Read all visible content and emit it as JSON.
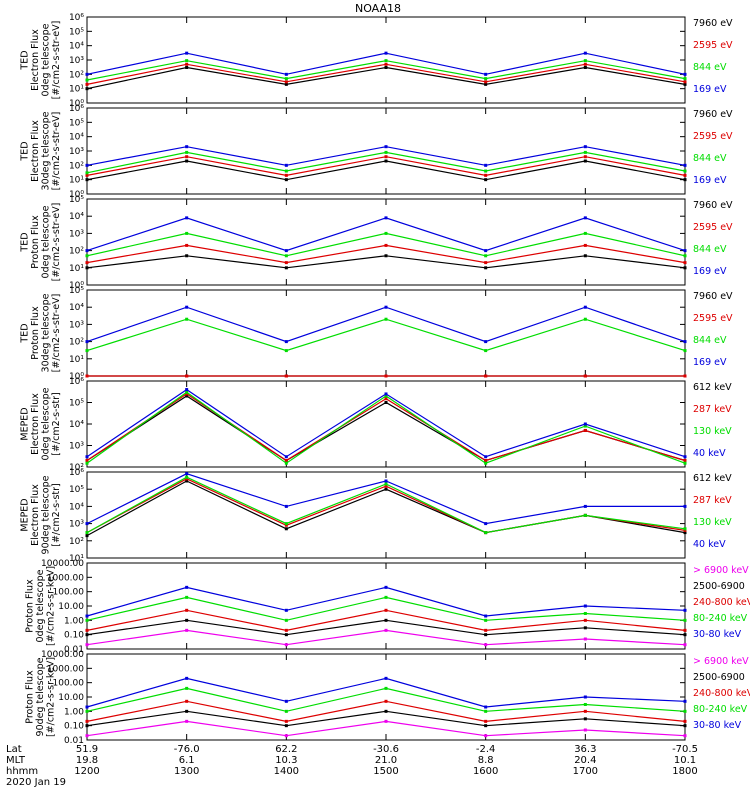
{
  "title": "NOAA18",
  "colors": {
    "black": "#000000",
    "red": "#dd0000",
    "green": "#00dd00",
    "blue": "#0000dd",
    "magenta": "#ee00ee"
  },
  "footer": {
    "row_labels": [
      "Lat",
      "MLT",
      "hhmm"
    ],
    "date": "2020 Jan 19",
    "columns": [
      {
        "lat": "51.9",
        "mlt": "19.8",
        "hhmm": "1200"
      },
      {
        "lat": "-76.0",
        "mlt": "6.1",
        "hhmm": "1300"
      },
      {
        "lat": "62.2",
        "mlt": "10.3",
        "hhmm": "1400"
      },
      {
        "lat": "-30.6",
        "mlt": "21.0",
        "hhmm": "1500"
      },
      {
        "lat": "-2.4",
        "mlt": "8.8",
        "hhmm": "1600"
      },
      {
        "lat": "36.3",
        "mlt": "20.4",
        "hhmm": "1700"
      },
      {
        "lat": "-70.5",
        "mlt": "10.1",
        "hhmm": "1800"
      }
    ]
  },
  "chart_data": [
    {
      "type": "line",
      "ylabel_lines": [
        "TED",
        "Electron Flux",
        "0deg telescope",
        "[#/cm2-s-str-eV]"
      ],
      "scale": "log",
      "ylim": [
        1,
        1000000
      ],
      "tick_labels": [
        "10⁰",
        "10¹",
        "10²",
        "10³",
        "10⁴",
        "10⁵",
        "10⁶"
      ],
      "legend": [
        {
          "label": "7960 eV",
          "color": "#000000"
        },
        {
          "label": "2595 eV",
          "color": "#dd0000"
        },
        {
          "label": "844 eV",
          "color": "#00dd00"
        },
        {
          "label": "169 eV",
          "color": "#0000dd"
        }
      ],
      "approximate": true,
      "x": [
        "1200",
        "1300",
        "1400",
        "1500",
        "1600",
        "1700",
        "1800"
      ],
      "series": [
        {
          "values": [
            10,
            300,
            20,
            300,
            20,
            300,
            20
          ]
        },
        {
          "values": [
            20,
            500,
            30,
            500,
            30,
            500,
            30
          ]
        },
        {
          "values": [
            40,
            900,
            50,
            900,
            50,
            900,
            50
          ]
        },
        {
          "values": [
            100,
            3000,
            100,
            3000,
            100,
            3000,
            100
          ]
        }
      ]
    },
    {
      "type": "line",
      "ylabel_lines": [
        "TED",
        "Electron Flux",
        "30deg telescope",
        "[#/cm2-s-str-eV]"
      ],
      "scale": "log",
      "ylim": [
        1,
        1000000
      ],
      "tick_labels": [
        "10⁰",
        "10¹",
        "10²",
        "10³",
        "10⁴",
        "10⁵",
        "10⁶"
      ],
      "legend": [
        {
          "label": "7960 eV",
          "color": "#000000"
        },
        {
          "label": "2595 eV",
          "color": "#dd0000"
        },
        {
          "label": "844 eV",
          "color": "#00dd00"
        },
        {
          "label": "169 eV",
          "color": "#0000dd"
        }
      ],
      "approximate": true,
      "x": [
        "1200",
        "1300",
        "1400",
        "1500",
        "1600",
        "1700",
        "1800"
      ],
      "series": [
        {
          "values": [
            10,
            200,
            10,
            200,
            10,
            200,
            10
          ]
        },
        {
          "values": [
            20,
            400,
            20,
            400,
            20,
            400,
            20
          ]
        },
        {
          "values": [
            30,
            800,
            40,
            800,
            40,
            800,
            40
          ]
        },
        {
          "values": [
            100,
            2000,
            100,
            2000,
            100,
            2000,
            100
          ]
        }
      ]
    },
    {
      "type": "line",
      "ylabel_lines": [
        "TED",
        "Proton Flux",
        "0deg telescope",
        "[#/cm2-s-str-eV]"
      ],
      "scale": "log",
      "ylim": [
        1,
        100000
      ],
      "tick_labels": [
        "10⁰",
        "10¹",
        "10²",
        "10³",
        "10⁴",
        "10⁵"
      ],
      "legend": [
        {
          "label": "7960 eV",
          "color": "#000000"
        },
        {
          "label": "2595 eV",
          "color": "#dd0000"
        },
        {
          "label": "844 eV",
          "color": "#00dd00"
        },
        {
          "label": "169 eV",
          "color": "#0000dd"
        }
      ],
      "approximate": true,
      "x": [
        "1200",
        "1300",
        "1400",
        "1500",
        "1600",
        "1700",
        "1800"
      ],
      "series": [
        {
          "values": [
            10,
            50,
            10,
            50,
            10,
            50,
            10
          ]
        },
        {
          "values": [
            20,
            200,
            20,
            200,
            20,
            200,
            20
          ]
        },
        {
          "values": [
            50,
            1000,
            50,
            1000,
            50,
            1000,
            50
          ]
        },
        {
          "values": [
            100,
            8000,
            100,
            8000,
            100,
            8000,
            100
          ]
        }
      ]
    },
    {
      "type": "line",
      "ylabel_lines": [
        "TED",
        "Proton Flux",
        "30deg telescope",
        "[#/cm2-s-str-eV]"
      ],
      "scale": "log",
      "ylim": [
        1,
        100000
      ],
      "tick_labels": [
        "10⁰",
        "10¹",
        "10²",
        "10³",
        "10⁴",
        "10⁵"
      ],
      "legend": [
        {
          "label": "7960 eV",
          "color": "#000000"
        },
        {
          "label": "2595 eV",
          "color": "#dd0000"
        },
        {
          "label": "844 eV",
          "color": "#00dd00"
        },
        {
          "label": "169 eV",
          "color": "#0000dd"
        }
      ],
      "approximate": true,
      "x": [
        "1200",
        "1300",
        "1400",
        "1500",
        "1600",
        "1700",
        "1800"
      ],
      "series": [
        {
          "values": [
            1,
            1,
            1,
            1,
            1,
            1,
            1
          ]
        },
        {
          "values": [
            1,
            1,
            1,
            1,
            1,
            1,
            1
          ]
        },
        {
          "values": [
            30,
            2000,
            30,
            2000,
            30,
            2000,
            30
          ]
        },
        {
          "values": [
            100,
            10000,
            100,
            10000,
            100,
            10000,
            100
          ]
        }
      ]
    },
    {
      "type": "line",
      "ylabel_lines": [
        "MEPED",
        "Electron Flux",
        "0deg telescope",
        "[#/cm2-s-str]"
      ],
      "scale": "log",
      "ylim": [
        100,
        1000000
      ],
      "tick_labels": [
        "10²",
        "10³",
        "10⁴",
        "10⁵",
        "10⁶"
      ],
      "legend": [
        {
          "label": "612 keV",
          "color": "#000000"
        },
        {
          "label": "287 keV",
          "color": "#dd0000"
        },
        {
          "label": "130 keV",
          "color": "#00dd00"
        },
        {
          "label": "40 keV",
          "color": "#0000dd"
        }
      ],
      "approximate": true,
      "x": [
        "1200",
        "1300",
        "1400",
        "1500",
        "1600",
        "1700",
        "1800"
      ],
      "series": [
        {
          "values": [
            200,
            200000,
            200,
            100000,
            200,
            5000,
            200
          ]
        },
        {
          "values": [
            200,
            250000,
            200,
            150000,
            200,
            5000,
            200
          ]
        },
        {
          "values": [
            150,
            300000,
            150,
            200000,
            150,
            8000,
            150
          ]
        },
        {
          "values": [
            300,
            400000,
            300,
            250000,
            300,
            10000,
            300
          ]
        }
      ]
    },
    {
      "type": "line",
      "ylabel_lines": [
        "MEPED",
        "Electron Flux",
        "90deg telescope",
        "[#/cm2-s-str]"
      ],
      "scale": "log",
      "ylim": [
        10,
        1000000
      ],
      "tick_labels": [
        "10¹",
        "10²",
        "10³",
        "10⁴",
        "10⁵",
        "10⁶"
      ],
      "legend": [
        {
          "label": "612 keV",
          "color": "#000000"
        },
        {
          "label": "287 keV",
          "color": "#dd0000"
        },
        {
          "label": "130 keV",
          "color": "#00dd00"
        },
        {
          "label": "40 keV",
          "color": "#0000dd"
        }
      ],
      "approximate": true,
      "x": [
        "1200",
        "1300",
        "1400",
        "1500",
        "1600",
        "1700",
        "1800"
      ],
      "series": [
        {
          "values": [
            200,
            300000,
            500,
            100000,
            300,
            3000,
            300
          ]
        },
        {
          "values": [
            300,
            400000,
            800,
            150000,
            300,
            3000,
            400
          ]
        },
        {
          "values": [
            300,
            500000,
            1000,
            200000,
            300,
            3000,
            500
          ]
        },
        {
          "values": [
            1000,
            800000,
            10000,
            300000,
            1000,
            10000,
            10000
          ]
        }
      ]
    },
    {
      "type": "line",
      "ylabel_lines": [
        "Proton Flux",
        "0deg telescope",
        "[#/cm2-s-sr-keV]"
      ],
      "scale": "log",
      "ylim": [
        0.01,
        10000
      ],
      "tick_labels": [
        "0.01",
        "0.10",
        "1.00",
        "10.00",
        "100.00",
        "1000.00",
        "10000.00"
      ],
      "legend": [
        {
          "label": "> 6900 keV",
          "color": "#ee00ee"
        },
        {
          "label": "2500-6900",
          "color": "#000000"
        },
        {
          "label": "240-800 keV",
          "color": "#dd0000"
        },
        {
          "label": "80-240 keV",
          "color": "#00dd00"
        },
        {
          "label": "30-80 keV",
          "color": "#0000dd"
        }
      ],
      "approximate": true,
      "x": [
        "1200",
        "1300",
        "1400",
        "1500",
        "1600",
        "1700",
        "1800"
      ],
      "series": [
        {
          "values": [
            0.02,
            0.2,
            0.02,
            0.2,
            0.02,
            0.05,
            0.02
          ]
        },
        {
          "values": [
            0.1,
            1,
            0.1,
            1,
            0.1,
            0.3,
            0.1
          ]
        },
        {
          "values": [
            0.2,
            5,
            0.2,
            5,
            0.2,
            1,
            0.2
          ]
        },
        {
          "values": [
            1,
            40,
            1,
            40,
            1,
            3,
            1
          ]
        },
        {
          "values": [
            2,
            200,
            5,
            200,
            2,
            10,
            5
          ]
        }
      ]
    },
    {
      "type": "line",
      "ylabel_lines": [
        "Proton Flux",
        "90deg telescope",
        "[#/cm2-s-sr-keV]"
      ],
      "scale": "log",
      "ylim": [
        0.01,
        10000
      ],
      "tick_labels": [
        "0.01",
        "0.10",
        "1.00",
        "10.00",
        "100.00",
        "1000.00",
        "10000.00"
      ],
      "legend": [
        {
          "label": "> 6900 keV",
          "color": "#ee00ee"
        },
        {
          "label": "2500-6900",
          "color": "#000000"
        },
        {
          "label": "240-800 keV",
          "color": "#dd0000"
        },
        {
          "label": "80-240 keV",
          "color": "#00dd00"
        },
        {
          "label": "30-80 keV",
          "color": "#0000dd"
        }
      ],
      "approximate": true,
      "x": [
        "1200",
        "1300",
        "1400",
        "1500",
        "1600",
        "1700",
        "1800"
      ],
      "series": [
        {
          "values": [
            0.02,
            0.2,
            0.02,
            0.2,
            0.02,
            0.05,
            0.02
          ]
        },
        {
          "values": [
            0.1,
            1,
            0.1,
            1,
            0.1,
            0.3,
            0.1
          ]
        },
        {
          "values": [
            0.2,
            5,
            0.2,
            5,
            0.2,
            1,
            0.2
          ]
        },
        {
          "values": [
            1,
            40,
            1,
            40,
            1,
            3,
            1
          ]
        },
        {
          "values": [
            2,
            200,
            5,
            200,
            2,
            10,
            5
          ]
        }
      ]
    }
  ]
}
